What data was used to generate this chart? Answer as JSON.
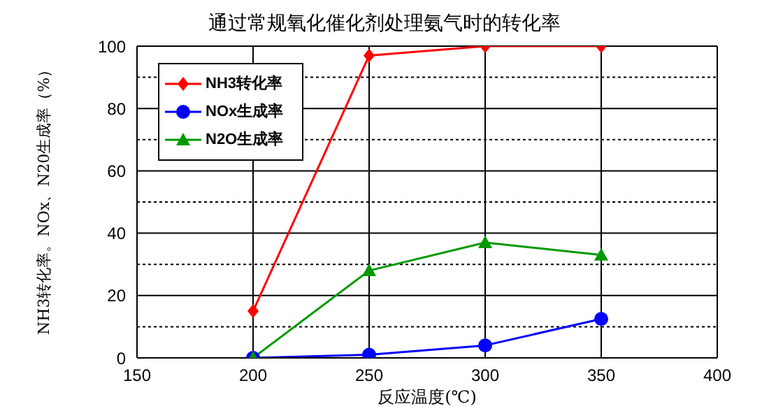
{
  "chart_data": {
    "type": "line",
    "title": "通过常规氧化催化剂处理氨气时的转化率",
    "xlabel": "反应温度(℃)",
    "ylabel": "NH3转化率。NOx、N20生成率（%）",
    "x": [
      200,
      250,
      300,
      350
    ],
    "series": [
      {
        "name": "NH3转化率",
        "color": "#ff0000",
        "marker": "diamond",
        "values": [
          15,
          97,
          100,
          100
        ]
      },
      {
        "name": "NOx生成率",
        "color": "#0000ff",
        "marker": "circle",
        "values": [
          0,
          1,
          4,
          12.5
        ]
      },
      {
        "name": "N2O生成率",
        "color": "#009900",
        "marker": "triangle",
        "values": [
          0,
          28,
          37,
          33
        ]
      }
    ],
    "xlim": [
      150,
      400
    ],
    "xticks": [
      150,
      200,
      250,
      300,
      350,
      400
    ],
    "ylim": [
      0,
      100
    ],
    "yticks": [
      0,
      {
        "value": 10,
        "label": null
      },
      20,
      {
        "value": 30,
        "label": null
      },
      40,
      {
        "value": 50,
        "label": null
      },
      60,
      {
        "value": 70,
        "label": null
      },
      80,
      {
        "value": 90,
        "label": null
      },
      100
    ],
    "grid": true,
    "legend": "top left",
    "line_style": "solid"
  }
}
